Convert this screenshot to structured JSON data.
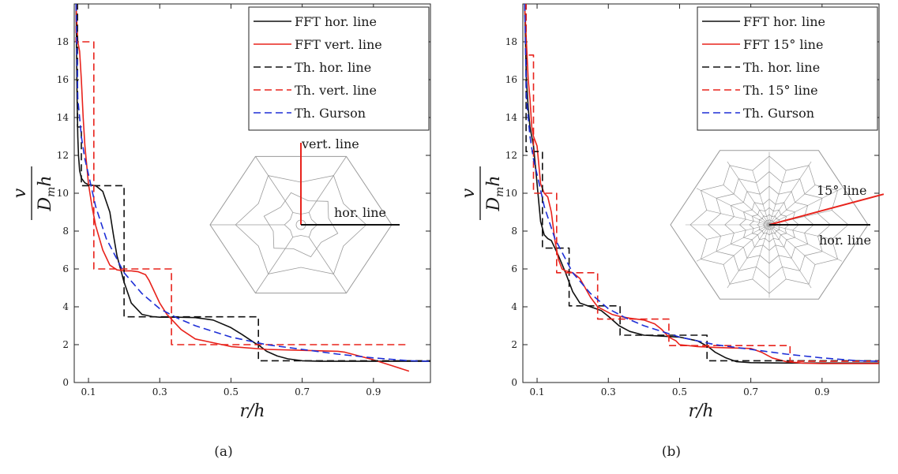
{
  "chart_data": [
    {
      "type": "line",
      "caption": "(a)",
      "xlabel": "r/h",
      "ylabel": "v / D_m h",
      "xlim": [
        0.06,
        1.06
      ],
      "ylim": [
        0,
        20
      ],
      "xticks": [
        "0.1",
        "0.3",
        "0.5",
        "0.7",
        "0.9"
      ],
      "yticks": [
        "0",
        "2",
        "4",
        "6",
        "8",
        "10",
        "12",
        "14",
        "16",
        "18"
      ],
      "grid": false,
      "legend_position": "top-right",
      "inset": {
        "labels": [
          "vert. line",
          "hor. line"
        ],
        "line_colors": [
          "#e8231c",
          "#111111"
        ],
        "pattern": "six-fold"
      },
      "series": [
        {
          "name": "FFT hor. line",
          "color": "#111111",
          "dash": "solid",
          "x": [
            0.065,
            0.068,
            0.07,
            0.072,
            0.075,
            0.08,
            0.09,
            0.1,
            0.12,
            0.14,
            0.16,
            0.17,
            0.18,
            0.19,
            0.2,
            0.22,
            0.25,
            0.28,
            0.3,
            0.35,
            0.4,
            0.45,
            0.5,
            0.53,
            0.55,
            0.57,
            0.58,
            0.6,
            0.63,
            0.66,
            0.7,
            0.75,
            0.8,
            0.9,
            1.06
          ],
          "y": [
            20,
            15,
            13,
            12,
            11.2,
            10.8,
            10.55,
            10.45,
            10.4,
            10.1,
            9,
            7.8,
            6.7,
            6,
            5.3,
            4.2,
            3.6,
            3.48,
            3.45,
            3.45,
            3.43,
            3.3,
            2.9,
            2.55,
            2.3,
            2.05,
            1.95,
            1.65,
            1.4,
            1.25,
            1.15,
            1.12,
            1.12,
            1.12,
            1.12
          ]
        },
        {
          "name": "FFT vert. line",
          "color": "#e8231c",
          "dash": "solid",
          "x": [
            0.065,
            0.07,
            0.075,
            0.08,
            0.085,
            0.09,
            0.1,
            0.11,
            0.12,
            0.14,
            0.16,
            0.18,
            0.2,
            0.22,
            0.24,
            0.26,
            0.27,
            0.28,
            0.29,
            0.3,
            0.32,
            0.34,
            0.36,
            0.4,
            0.5,
            0.6,
            0.7,
            0.8,
            0.82,
            0.86,
            0.9,
            0.95,
            1.0
          ],
          "y": [
            20,
            18,
            17.5,
            16,
            14,
            12.5,
            10.5,
            9.3,
            8.3,
            7,
            6.2,
            5.95,
            5.9,
            5.9,
            5.85,
            5.7,
            5.4,
            5,
            4.6,
            4.2,
            3.6,
            3.2,
            2.8,
            2.3,
            1.9,
            1.75,
            1.7,
            1.65,
            1.6,
            1.4,
            1.2,
            0.9,
            0.6
          ]
        },
        {
          "name": "Th.  hor. line",
          "color": "#111111",
          "dash": "dashed",
          "x": [
            0.065,
            0.069,
            0.069,
            0.08,
            0.08,
            0.11,
            0.11,
            0.2,
            0.2,
            0.577,
            0.577,
            1.06
          ],
          "y": [
            20,
            20,
            13.5,
            13.5,
            10.4,
            10.4,
            10.4,
            10.4,
            3.47,
            3.47,
            1.15,
            1.15
          ]
        },
        {
          "name": "Th. vert. line",
          "color": "#e8231c",
          "dash": "dashed",
          "x": [
            0.065,
            0.065,
            0.115,
            0.115,
            0.333,
            0.333,
            1.0
          ],
          "y": [
            20,
            18,
            18,
            6,
            6,
            2,
            2
          ]
        },
        {
          "name": "Th. Gurson",
          "color": "#1e2fd6",
          "dash": "dashed",
          "x": [
            0.065,
            0.07,
            0.075,
            0.08,
            0.09,
            0.1,
            0.12,
            0.15,
            0.2,
            0.25,
            0.3,
            0.35,
            0.4,
            0.5,
            0.6,
            0.7,
            0.8,
            0.9,
            1.0,
            1.06
          ],
          "y": [
            20,
            15,
            14,
            13,
            11.8,
            11,
            9.3,
            7.6,
            5.8,
            4.7,
            3.9,
            3.4,
            3,
            2.4,
            2,
            1.75,
            1.5,
            1.3,
            1.15,
            1.12
          ]
        }
      ]
    },
    {
      "type": "line",
      "caption": "(b)",
      "xlabel": "r/h",
      "ylabel": "v / D_m h",
      "xlim": [
        0.06,
        1.06
      ],
      "ylim": [
        0,
        20
      ],
      "xticks": [
        "0.1",
        "0.3",
        "0.5",
        "0.7",
        "0.9"
      ],
      "yticks": [
        "0",
        "2",
        "4",
        "6",
        "8",
        "10",
        "12",
        "14",
        "16",
        "18"
      ],
      "grid": false,
      "legend_position": "top-right",
      "inset": {
        "labels": [
          "15° line",
          "hor. line"
        ],
        "line_colors": [
          "#e8231c",
          "#111111"
        ],
        "pattern": "twelve-fold"
      },
      "series": [
        {
          "name": "FFT hor. line",
          "color": "#111111",
          "dash": "solid",
          "x": [
            0.065,
            0.07,
            0.075,
            0.08,
            0.09,
            0.1,
            0.11,
            0.12,
            0.13,
            0.14,
            0.16,
            0.18,
            0.2,
            0.22,
            0.25,
            0.28,
            0.3,
            0.33,
            0.36,
            0.4,
            0.45,
            0.5,
            0.55,
            0.58,
            0.6,
            0.63,
            0.66,
            0.7,
            0.8,
            1.06
          ],
          "y": [
            20,
            16,
            14.5,
            13.5,
            12.5,
            10.5,
            8.5,
            7.8,
            7.6,
            7.5,
            6.7,
            5.8,
            4.8,
            4.2,
            4,
            3.8,
            3.5,
            3,
            2.7,
            2.5,
            2.45,
            2.4,
            2.2,
            1.9,
            1.6,
            1.3,
            1.1,
            1.05,
            1.03,
            1.03
          ]
        },
        {
          "name": "FFT 15° line",
          "color": "#e8231c",
          "dash": "solid",
          "x": [
            0.065,
            0.07,
            0.075,
            0.08,
            0.085,
            0.09,
            0.1,
            0.11,
            0.12,
            0.13,
            0.14,
            0.15,
            0.16,
            0.17,
            0.18,
            0.2,
            0.22,
            0.25,
            0.27,
            0.29,
            0.31,
            0.33,
            0.36,
            0.4,
            0.43,
            0.45,
            0.47,
            0.49,
            0.5,
            0.55,
            0.6,
            0.7,
            0.73,
            0.76,
            0.8,
            0.85,
            0.9,
            1.06
          ],
          "y": [
            20,
            18,
            16,
            15,
            13.5,
            13,
            12.5,
            10.5,
            10,
            9.8,
            9,
            7.5,
            6.5,
            6,
            5.9,
            5.8,
            5.5,
            4.5,
            4,
            3.8,
            3.6,
            3.5,
            3.4,
            3.3,
            3.1,
            2.8,
            2.4,
            2.2,
            2,
            1.9,
            1.85,
            1.8,
            1.6,
            1.3,
            1.1,
            1.02,
            1.0,
            1.0
          ]
        },
        {
          "name": "Th. hor. line",
          "color": "#111111",
          "dash": "dashed",
          "x": [
            0.065,
            0.069,
            0.069,
            0.095,
            0.095,
            0.115,
            0.115,
            0.19,
            0.19,
            0.333,
            0.333,
            0.577,
            0.577,
            1.06
          ],
          "y": [
            20,
            20,
            12.2,
            12.2,
            12.2,
            12.2,
            7.1,
            7.1,
            4.05,
            4.05,
            2.5,
            2.5,
            1.15,
            1.15
          ]
        },
        {
          "name": "Th. 15° line",
          "color": "#e8231c",
          "dash": "dashed",
          "x": [
            0.065,
            0.069,
            0.069,
            0.09,
            0.09,
            0.155,
            0.155,
            0.27,
            0.27,
            0.47,
            0.47,
            0.81,
            0.81,
            1.06
          ],
          "y": [
            20,
            20,
            17.3,
            17.3,
            10,
            10,
            5.8,
            5.8,
            3.35,
            3.35,
            1.95,
            1.95,
            1.12,
            1.12
          ]
        },
        {
          "name": "Th. Gurson",
          "color": "#1e2fd6",
          "dash": "dashed",
          "x": [
            0.065,
            0.07,
            0.075,
            0.08,
            0.09,
            0.1,
            0.12,
            0.15,
            0.2,
            0.25,
            0.3,
            0.35,
            0.4,
            0.5,
            0.6,
            0.7,
            0.8,
            0.9,
            1.0,
            1.06
          ],
          "y": [
            20,
            15,
            14,
            13,
            11.8,
            11,
            9.3,
            7.6,
            5.8,
            4.7,
            3.9,
            3.4,
            3,
            2.4,
            2,
            1.75,
            1.5,
            1.3,
            1.15,
            1.12
          ]
        }
      ]
    }
  ]
}
